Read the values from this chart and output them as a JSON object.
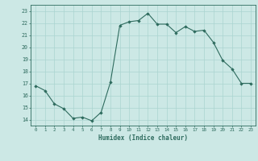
{
  "x": [
    0,
    1,
    2,
    3,
    4,
    5,
    6,
    7,
    8,
    9,
    10,
    11,
    12,
    13,
    14,
    15,
    16,
    17,
    18,
    19,
    20,
    21,
    22,
    23
  ],
  "y": [
    16.8,
    16.4,
    15.3,
    14.9,
    14.1,
    14.2,
    13.9,
    14.6,
    17.1,
    21.8,
    22.1,
    22.2,
    22.8,
    21.9,
    21.9,
    21.2,
    21.7,
    21.3,
    21.4,
    20.4,
    18.9,
    18.2,
    17.0,
    17.0
  ],
  "line_color": "#2e6b5e",
  "marker": "D",
  "marker_size": 1.8,
  "bg_color": "#cce8e5",
  "grid_color": "#aad4d0",
  "xlabel": "Humidex (Indice chaleur)",
  "yticks": [
    14,
    15,
    16,
    17,
    18,
    19,
    20,
    21,
    22,
    23
  ],
  "xlim": [
    -0.5,
    23.5
  ],
  "ylim": [
    13.5,
    23.5
  ]
}
